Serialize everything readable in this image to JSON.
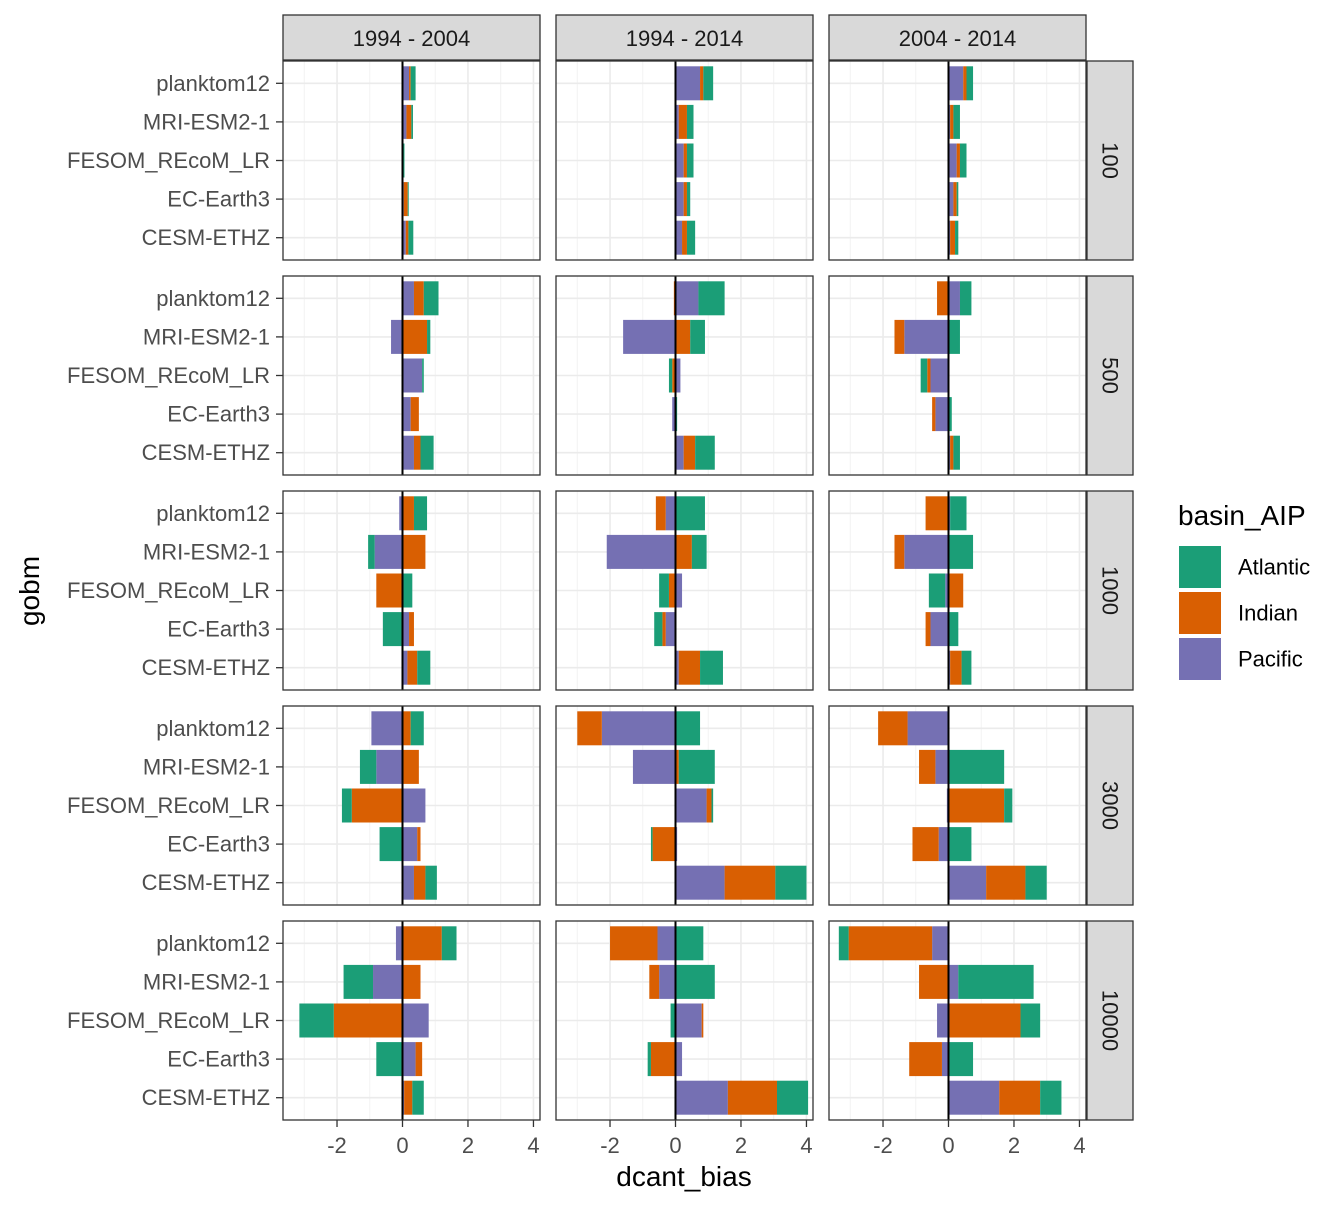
{
  "chart_data": {
    "type": "bar",
    "orientation": "horizontal",
    "stacked": true,
    "xlabel": "dcant_bias",
    "ylabel": "gobm",
    "xlim": [
      -3.65,
      4.2
    ],
    "xticks": [
      -2,
      0,
      2,
      4
    ],
    "grid": true,
    "legend": {
      "title": "basin_AIP",
      "position": "right",
      "entries": [
        {
          "name": "Atlantic",
          "color": "#1B9E77"
        },
        {
          "name": "Indian",
          "color": "#D95F02"
        },
        {
          "name": "Pacific",
          "color": "#7570B3"
        }
      ]
    },
    "col_facets": [
      "1994 - 2004",
      "1994 - 2014",
      "2004 - 2014"
    ],
    "row_facets": [
      "100",
      "500",
      "1000",
      "3000",
      "10000"
    ],
    "categories": [
      "planktom12",
      "MRI-ESM2-1",
      "FESOM_REcoM_LR",
      "EC-Earth3",
      "CESM-ETHZ"
    ],
    "stack_order": [
      "Pacific",
      "Indian",
      "Atlantic"
    ],
    "panels": [
      {
        "col": "1994 - 2004",
        "row": "100",
        "values": {
          "planktom12": {
            "Atlantic": 0.15,
            "Indian": 0.05,
            "Pacific": 0.2
          },
          "MRI-ESM2-1": {
            "Atlantic": 0.05,
            "Indian": 0.15,
            "Pacific": 0.12
          },
          "FESOM_REcoM_LR": {
            "Atlantic": 0.03,
            "Indian": 0.02,
            "Pacific": 0.01
          },
          "EC-Earth3": {
            "Atlantic": 0.03,
            "Indian": 0.12,
            "Pacific": 0.04
          },
          "CESM-ETHZ": {
            "Atlantic": 0.15,
            "Indian": 0.08,
            "Pacific": 0.1
          }
        }
      },
      {
        "col": "1994 - 2014",
        "row": "100",
        "values": {
          "planktom12": {
            "Atlantic": 0.3,
            "Indian": 0.1,
            "Pacific": 0.75
          },
          "MRI-ESM2-1": {
            "Atlantic": 0.2,
            "Indian": 0.25,
            "Pacific": 0.1
          },
          "FESOM_REcoM_LR": {
            "Atlantic": 0.2,
            "Indian": 0.1,
            "Pacific": 0.25
          },
          "EC-Earth3": {
            "Atlantic": 0.1,
            "Indian": 0.1,
            "Pacific": 0.25
          },
          "CESM-ETHZ": {
            "Atlantic": 0.25,
            "Indian": 0.15,
            "Pacific": 0.2
          }
        }
      },
      {
        "col": "2004 - 2014",
        "row": "100",
        "values": {
          "planktom12": {
            "Atlantic": 0.2,
            "Indian": 0.1,
            "Pacific": 0.45
          },
          "MRI-ESM2-1": {
            "Atlantic": 0.2,
            "Indian": 0.1,
            "Pacific": 0.05
          },
          "FESOM_REcoM_LR": {
            "Atlantic": 0.2,
            "Indian": 0.1,
            "Pacific": 0.25
          },
          "EC-Earth3": {
            "Atlantic": 0.05,
            "Indian": 0.1,
            "Pacific": 0.15
          },
          "CESM-ETHZ": {
            "Atlantic": 0.1,
            "Indian": 0.15,
            "Pacific": 0.05
          }
        }
      },
      {
        "col": "1994 - 2004",
        "row": "500",
        "values": {
          "planktom12": {
            "Atlantic": 0.45,
            "Indian": 0.3,
            "Pacific": 0.35
          },
          "MRI-ESM2-1": {
            "Atlantic": 0.1,
            "Indian": 0.75,
            "Pacific": -0.35
          },
          "FESOM_REcoM_LR": {
            "Atlantic": 0.05,
            "Indian": 0.0,
            "Pacific": 0.6
          },
          "EC-Earth3": {
            "Atlantic": 0.0,
            "Indian": 0.25,
            "Pacific": 0.25
          },
          "CESM-ETHZ": {
            "Atlantic": 0.4,
            "Indian": 0.2,
            "Pacific": 0.35
          }
        }
      },
      {
        "col": "1994 - 2014",
        "row": "500",
        "values": {
          "planktom12": {
            "Atlantic": 0.8,
            "Indian": -0.05,
            "Pacific": 0.7
          },
          "MRI-ESM2-1": {
            "Atlantic": 0.45,
            "Indian": 0.45,
            "Pacific": -1.6
          },
          "FESOM_REcoM_LR": {
            "Atlantic": -0.1,
            "Indian": -0.1,
            "Pacific": 0.15
          },
          "EC-Earth3": {
            "Atlantic": 0.05,
            "Indian": 0.0,
            "Pacific": -0.1
          },
          "CESM-ETHZ": {
            "Atlantic": 0.6,
            "Indian": 0.35,
            "Pacific": 0.25
          }
        }
      },
      {
        "col": "2004 - 2014",
        "row": "500",
        "values": {
          "planktom12": {
            "Atlantic": 0.35,
            "Indian": -0.35,
            "Pacific": 0.35
          },
          "MRI-ESM2-1": {
            "Atlantic": 0.35,
            "Indian": -0.3,
            "Pacific": -1.35
          },
          "FESOM_REcoM_LR": {
            "Atlantic": -0.2,
            "Indian": -0.1,
            "Pacific": -0.55
          },
          "EC-Earth3": {
            "Atlantic": 0.1,
            "Indian": -0.1,
            "Pacific": -0.4
          },
          "CESM-ETHZ": {
            "Atlantic": 0.2,
            "Indian": 0.1,
            "Pacific": 0.05
          }
        }
      },
      {
        "col": "1994 - 2004",
        "row": "1000",
        "values": {
          "planktom12": {
            "Atlantic": 0.4,
            "Indian": 0.35,
            "Pacific": -0.1
          },
          "MRI-ESM2-1": {
            "Atlantic": -0.2,
            "Indian": 0.7,
            "Pacific": -0.85
          },
          "FESOM_REcoM_LR": {
            "Atlantic": 0.3,
            "Indian": -0.8,
            "Pacific": 0.0
          },
          "EC-Earth3": {
            "Atlantic": -0.6,
            "Indian": 0.15,
            "Pacific": 0.2
          },
          "CESM-ETHZ": {
            "Atlantic": 0.4,
            "Indian": 0.3,
            "Pacific": 0.15
          }
        }
      },
      {
        "col": "1994 - 2014",
        "row": "1000",
        "values": {
          "planktom12": {
            "Atlantic": 0.9,
            "Indian": -0.3,
            "Pacific": -0.3
          },
          "MRI-ESM2-1": {
            "Atlantic": 0.45,
            "Indian": 0.5,
            "Pacific": -2.1
          },
          "FESOM_REcoM_LR": {
            "Atlantic": -0.3,
            "Indian": -0.2,
            "Pacific": 0.2
          },
          "EC-Earth3": {
            "Atlantic": -0.25,
            "Indian": -0.1,
            "Pacific": -0.3
          },
          "CESM-ETHZ": {
            "Atlantic": 0.7,
            "Indian": 0.65,
            "Pacific": 0.1
          }
        }
      },
      {
        "col": "2004 - 2014",
        "row": "1000",
        "values": {
          "planktom12": {
            "Atlantic": 0.5,
            "Indian": -0.7,
            "Pacific": 0.05
          },
          "MRI-ESM2-1": {
            "Atlantic": 0.75,
            "Indian": -0.3,
            "Pacific": -1.35
          },
          "FESOM_REcoM_LR": {
            "Atlantic": -0.5,
            "Indian": 0.45,
            "Pacific": -0.1
          },
          "EC-Earth3": {
            "Atlantic": 0.3,
            "Indian": -0.15,
            "Pacific": -0.55
          },
          "CESM-ETHZ": {
            "Atlantic": 0.3,
            "Indian": 0.35,
            "Pacific": 0.05
          }
        }
      },
      {
        "col": "1994 - 2004",
        "row": "3000",
        "values": {
          "planktom12": {
            "Atlantic": 0.4,
            "Indian": 0.25,
            "Pacific": -0.95
          },
          "MRI-ESM2-1": {
            "Atlantic": -0.5,
            "Indian": 0.5,
            "Pacific": -0.8
          },
          "FESOM_REcoM_LR": {
            "Atlantic": -0.3,
            "Indian": -1.55,
            "Pacific": 0.7
          },
          "EC-Earth3": {
            "Atlantic": -0.7,
            "Indian": 0.1,
            "Pacific": 0.45
          },
          "CESM-ETHZ": {
            "Atlantic": 0.35,
            "Indian": 0.35,
            "Pacific": 0.35
          }
        }
      },
      {
        "col": "1994 - 2014",
        "row": "3000",
        "values": {
          "planktom12": {
            "Atlantic": 0.75,
            "Indian": -0.75,
            "Pacific": -2.25
          },
          "MRI-ESM2-1": {
            "Atlantic": 1.1,
            "Indian": 0.1,
            "Pacific": -1.3
          },
          "FESOM_REcoM_LR": {
            "Atlantic": 0.05,
            "Indian": 0.15,
            "Pacific": 0.95
          },
          "EC-Earth3": {
            "Atlantic": -0.05,
            "Indian": -0.7,
            "Pacific": 0.05
          },
          "CESM-ETHZ": {
            "Atlantic": 0.95,
            "Indian": 1.55,
            "Pacific": 1.5
          }
        }
      },
      {
        "col": "2004 - 2014",
        "row": "3000",
        "values": {
          "planktom12": {
            "Atlantic": 0.0,
            "Indian": -0.9,
            "Pacific": -1.25
          },
          "MRI-ESM2-1": {
            "Atlantic": 1.7,
            "Indian": -0.5,
            "Pacific": -0.4
          },
          "FESOM_REcoM_LR": {
            "Atlantic": 0.25,
            "Indian": 1.7,
            "Pacific": -0.05
          },
          "EC-Earth3": {
            "Atlantic": 0.7,
            "Indian": -0.8,
            "Pacific": -0.3
          },
          "CESM-ETHZ": {
            "Atlantic": 0.65,
            "Indian": 1.2,
            "Pacific": 1.15
          }
        }
      },
      {
        "col": "1994 - 2004",
        "row": "10000",
        "values": {
          "planktom12": {
            "Atlantic": 0.45,
            "Indian": 1.2,
            "Pacific": -0.2
          },
          "MRI-ESM2-1": {
            "Atlantic": -0.9,
            "Indian": 0.55,
            "Pacific": -0.9
          },
          "FESOM_REcoM_LR": {
            "Atlantic": -1.05,
            "Indian": -2.1,
            "Pacific": 0.8
          },
          "EC-Earth3": {
            "Atlantic": -0.8,
            "Indian": 0.2,
            "Pacific": 0.4
          },
          "CESM-ETHZ": {
            "Atlantic": 0.35,
            "Indian": 0.25,
            "Pacific": 0.05
          }
        }
      },
      {
        "col": "1994 - 2014",
        "row": "10000",
        "values": {
          "planktom12": {
            "Atlantic": 0.85,
            "Indian": -1.45,
            "Pacific": -0.55
          },
          "MRI-ESM2-1": {
            "Atlantic": 1.2,
            "Indian": -0.3,
            "Pacific": -0.5
          },
          "FESOM_REcoM_LR": {
            "Atlantic": -0.15,
            "Indian": 0.05,
            "Pacific": 0.8
          },
          "EC-Earth3": {
            "Atlantic": -0.1,
            "Indian": -0.75,
            "Pacific": 0.2
          },
          "CESM-ETHZ": {
            "Atlantic": 0.95,
            "Indian": 1.5,
            "Pacific": 1.6
          }
        }
      },
      {
        "col": "2004 - 2014",
        "row": "10000",
        "values": {
          "planktom12": {
            "Atlantic": -0.3,
            "Indian": -2.55,
            "Pacific": -0.5
          },
          "MRI-ESM2-1": {
            "Atlantic": 2.3,
            "Indian": -0.9,
            "Pacific": 0.3
          },
          "FESOM_REcoM_LR": {
            "Atlantic": 0.6,
            "Indian": 2.2,
            "Pacific": -0.35
          },
          "EC-Earth3": {
            "Atlantic": 0.75,
            "Indian": -1.0,
            "Pacific": -0.2
          },
          "CESM-ETHZ": {
            "Atlantic": 0.65,
            "Indian": 1.25,
            "Pacific": 1.55
          }
        }
      }
    ]
  }
}
